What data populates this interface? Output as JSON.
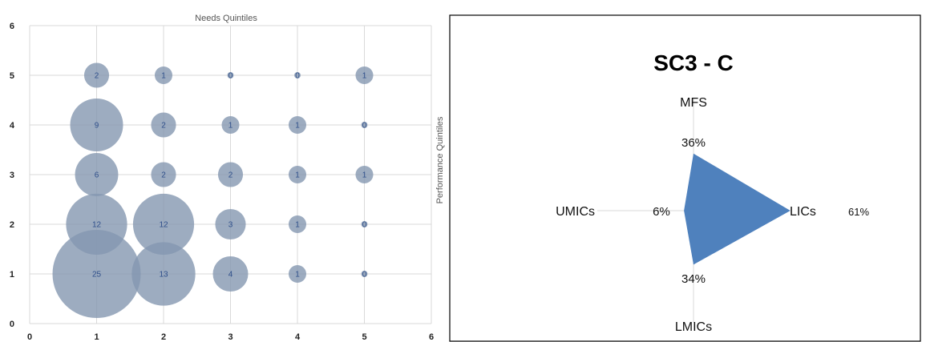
{
  "chart_data": [
    {
      "type": "scatter",
      "subtype": "bubble",
      "title": "Needs Quintiles",
      "ylabel": "Performance Quintiles",
      "xlim": [
        0,
        6
      ],
      "ylim": [
        0,
        6
      ],
      "x_ticks": [
        "0",
        "1",
        "2",
        "3",
        "4",
        "5",
        "6"
      ],
      "y_ticks": [
        "0",
        "1",
        "2",
        "3",
        "4",
        "5",
        "6"
      ],
      "grid": true,
      "bubble_color": "#8497b0",
      "points": [
        {
          "x": 1,
          "y": 5,
          "size": 2,
          "label": "2"
        },
        {
          "x": 2,
          "y": 5,
          "size": 1,
          "label": "1"
        },
        {
          "x": 3,
          "y": 5,
          "size": 0,
          "label": "0"
        },
        {
          "x": 4,
          "y": 5,
          "size": 0,
          "label": "0"
        },
        {
          "x": 5,
          "y": 5,
          "size": 1,
          "label": "1"
        },
        {
          "x": 1,
          "y": 4,
          "size": 9,
          "label": "9"
        },
        {
          "x": 2,
          "y": 4,
          "size": 2,
          "label": "2"
        },
        {
          "x": 3,
          "y": 4,
          "size": 1,
          "label": "1"
        },
        {
          "x": 4,
          "y": 4,
          "size": 1,
          "label": "1"
        },
        {
          "x": 5,
          "y": 4,
          "size": 0,
          "label": "0"
        },
        {
          "x": 1,
          "y": 3,
          "size": 6,
          "label": "6"
        },
        {
          "x": 2,
          "y": 3,
          "size": 2,
          "label": "2"
        },
        {
          "x": 3,
          "y": 3,
          "size": 2,
          "label": "2"
        },
        {
          "x": 4,
          "y": 3,
          "size": 1,
          "label": "1"
        },
        {
          "x": 5,
          "y": 3,
          "size": 1,
          "label": "1"
        },
        {
          "x": 1,
          "y": 2,
          "size": 12,
          "label": "12"
        },
        {
          "x": 2,
          "y": 2,
          "size": 12,
          "label": "12"
        },
        {
          "x": 3,
          "y": 2,
          "size": 3,
          "label": "3"
        },
        {
          "x": 4,
          "y": 2,
          "size": 1,
          "label": "1"
        },
        {
          "x": 5,
          "y": 2,
          "size": 0,
          "label": "0"
        },
        {
          "x": 1,
          "y": 1,
          "size": 25,
          "label": "25"
        },
        {
          "x": 2,
          "y": 1,
          "size": 13,
          "label": "13"
        },
        {
          "x": 3,
          "y": 1,
          "size": 4,
          "label": "4"
        },
        {
          "x": 4,
          "y": 1,
          "size": 1,
          "label": "1"
        },
        {
          "x": 5,
          "y": 1,
          "size": 0,
          "label": "0"
        }
      ]
    },
    {
      "type": "radar",
      "title": "SC3 - C",
      "fill_color": "#4f81bd",
      "axes": [
        {
          "name": "MFS",
          "value": 0.36,
          "value_label": "36%"
        },
        {
          "name": "LICs",
          "value": 0.61,
          "value_label": "61%"
        },
        {
          "name": "LMICs",
          "value": 0.34,
          "value_label": "34%"
        },
        {
          "name": "UMICs",
          "value": 0.06,
          "value_label": "6%"
        }
      ]
    }
  ]
}
